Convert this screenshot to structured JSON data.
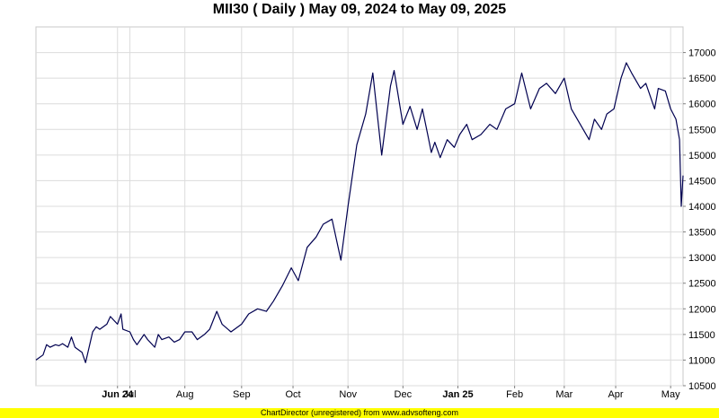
{
  "chart_data": {
    "type": "line",
    "title": "MII30 ( Daily ) May 09, 2024 to May 09, 2025",
    "ylim": [
      10500,
      17500
    ],
    "y_ticks": [
      10500,
      11000,
      11500,
      12000,
      12500,
      13000,
      13500,
      14000,
      14500,
      15000,
      15500,
      16000,
      16500,
      17000
    ],
    "x_ticks": [
      {
        "label": "Jun 24",
        "date": "2024-06-24",
        "major": true
      },
      {
        "label": "Jul",
        "date": "2024-07-01",
        "major": false
      },
      {
        "label": "Aug",
        "date": "2024-08-01",
        "major": false
      },
      {
        "label": "Sep",
        "date": "2024-09-02",
        "major": false
      },
      {
        "label": "Oct",
        "date": "2024-10-01",
        "major": false
      },
      {
        "label": "Nov",
        "date": "2024-11-01",
        "major": false
      },
      {
        "label": "Dec",
        "date": "2024-12-02",
        "major": false
      },
      {
        "label": "Jan 25",
        "date": "2025-01-02",
        "major": true
      },
      {
        "label": "Feb",
        "date": "2025-02-03",
        "major": false
      },
      {
        "label": "Mar",
        "date": "2025-03-03",
        "major": false
      },
      {
        "label": "Apr",
        "date": "2025-04-01",
        "major": false
      },
      {
        "label": "May",
        "date": "2025-05-02",
        "major": false
      }
    ],
    "grid": true,
    "series": [
      {
        "color": "#000050",
        "x": [
          "2024-05-09",
          "2024-05-13",
          "2024-05-15",
          "2024-05-17",
          "2024-05-20",
          "2024-05-22",
          "2024-05-24",
          "2024-05-27",
          "2024-05-29",
          "2024-05-31",
          "2024-06-04",
          "2024-06-06",
          "2024-06-10",
          "2024-06-12",
          "2024-06-14",
          "2024-06-18",
          "2024-06-20",
          "2024-06-24",
          "2024-06-26",
          "2024-06-27",
          "2024-07-01",
          "2024-07-03",
          "2024-07-05",
          "2024-07-09",
          "2024-07-11",
          "2024-07-15",
          "2024-07-17",
          "2024-07-19",
          "2024-07-23",
          "2024-07-26",
          "2024-07-29",
          "2024-08-01",
          "2024-08-05",
          "2024-08-08",
          "2024-08-12",
          "2024-08-15",
          "2024-08-19",
          "2024-08-22",
          "2024-08-27",
          "2024-09-02",
          "2024-09-06",
          "2024-09-11",
          "2024-09-16",
          "2024-09-20",
          "2024-09-25",
          "2024-09-30",
          "2024-10-04",
          "2024-10-09",
          "2024-10-14",
          "2024-10-18",
          "2024-10-23",
          "2024-10-28",
          "2024-11-01",
          "2024-11-06",
          "2024-11-11",
          "2024-11-15",
          "2024-11-20",
          "2024-11-25",
          "2024-11-27",
          "2024-12-02",
          "2024-12-06",
          "2024-12-10",
          "2024-12-13",
          "2024-12-16",
          "2024-12-18",
          "2024-12-20",
          "2024-12-23",
          "2024-12-27",
          "2024-12-31",
          "2025-01-03",
          "2025-01-07",
          "2025-01-10",
          "2025-01-15",
          "2025-01-20",
          "2025-01-24",
          "2025-01-29",
          "2025-02-03",
          "2025-02-07",
          "2025-02-12",
          "2025-02-17",
          "2025-02-21",
          "2025-02-26",
          "2025-03-03",
          "2025-03-07",
          "2025-03-12",
          "2025-03-17",
          "2025-03-20",
          "2025-03-24",
          "2025-03-27",
          "2025-03-31",
          "2025-04-02",
          "2025-04-04",
          "2025-04-07",
          "2025-04-10",
          "2025-04-15",
          "2025-04-18",
          "2025-04-23",
          "2025-04-25",
          "2025-04-29",
          "2025-05-02",
          "2025-05-05",
          "2025-05-07",
          "2025-05-08",
          "2025-05-09"
        ],
        "values": [
          11000,
          11100,
          11300,
          11250,
          11300,
          11280,
          11320,
          11250,
          11450,
          11250,
          11150,
          10950,
          11550,
          11650,
          11600,
          11700,
          11850,
          11700,
          11900,
          11600,
          11550,
          11400,
          11300,
          11500,
          11400,
          11250,
          11500,
          11400,
          11450,
          11350,
          11400,
          11550,
          11550,
          11400,
          11500,
          11600,
          11950,
          11700,
          11550,
          11700,
          11900,
          12000,
          11950,
          12150,
          12450,
          12800,
          12550,
          13200,
          13400,
          13650,
          13750,
          12950,
          14000,
          15200,
          15800,
          16600,
          15000,
          16350,
          16650,
          15600,
          15950,
          15500,
          15900,
          15400,
          15050,
          15250,
          14950,
          15300,
          15150,
          15400,
          15600,
          15300,
          15400,
          15600,
          15500,
          15900,
          16000,
          16600,
          15900,
          16300,
          16400,
          16200,
          16500,
          15900,
          15600,
          15300,
          15700,
          15500,
          15800,
          15900,
          16200,
          16500,
          16800,
          16600,
          16300,
          16400,
          15900,
          16300,
          16250,
          15900,
          15700,
          15300,
          14000,
          14600
        ]
      }
    ]
  },
  "footer": {
    "text": "ChartDirector (unregistered) from www.advsofteng.com"
  }
}
